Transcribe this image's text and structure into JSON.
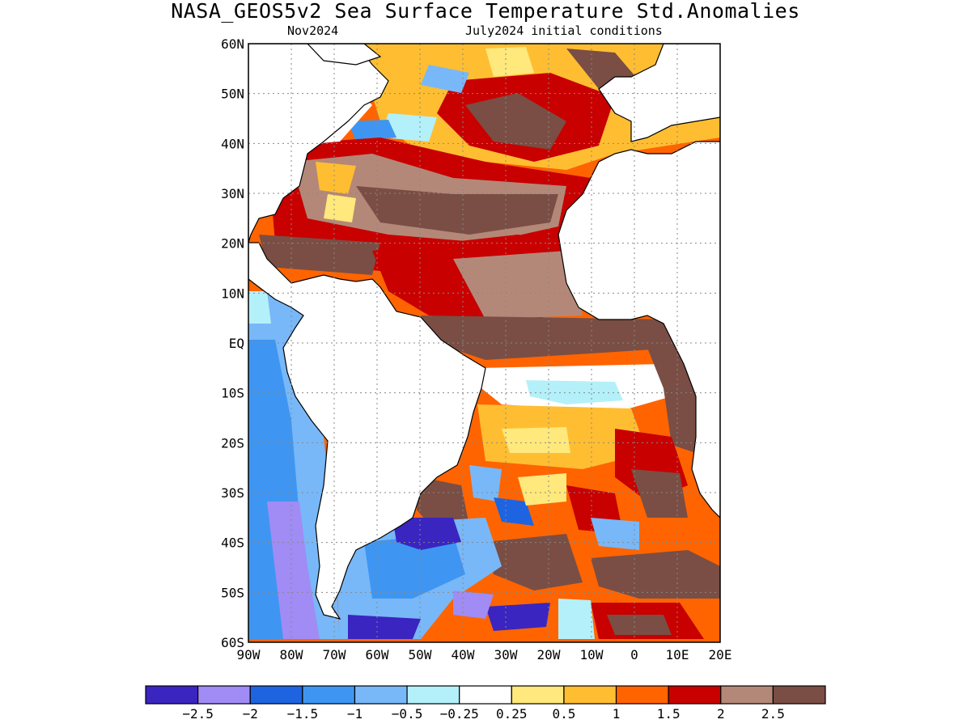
{
  "title": "NASA_GEOS5v2 Sea Surface Temperature Std.Anomalies",
  "subtitle_left": "Nov2024",
  "subtitle_right": "July2024 initial conditions",
  "map": {
    "lon_range": [
      -90,
      20
    ],
    "lat_range": [
      -60,
      60
    ],
    "grid": "dotted",
    "lat_labels": [
      {
        "lat": 60,
        "label": "60N"
      },
      {
        "lat": 50,
        "label": "50N"
      },
      {
        "lat": 40,
        "label": "40N"
      },
      {
        "lat": 30,
        "label": "30N"
      },
      {
        "lat": 20,
        "label": "20N"
      },
      {
        "lat": 10,
        "label": "10N"
      },
      {
        "lat": 0,
        "label": "EQ"
      },
      {
        "lat": -10,
        "label": "10S"
      },
      {
        "lat": -20,
        "label": "20S"
      },
      {
        "lat": -30,
        "label": "30S"
      },
      {
        "lat": -40,
        "label": "40S"
      },
      {
        "lat": -50,
        "label": "50S"
      },
      {
        "lat": -60,
        "label": "60S"
      }
    ],
    "lon_labels": [
      {
        "lon": -90,
        "label": "90W"
      },
      {
        "lon": -80,
        "label": "80W"
      },
      {
        "lon": -70,
        "label": "70W"
      },
      {
        "lon": -60,
        "label": "60W"
      },
      {
        "lon": -50,
        "label": "50W"
      },
      {
        "lon": -40,
        "label": "40W"
      },
      {
        "lon": -30,
        "label": "30W"
      },
      {
        "lon": -20,
        "label": "20W"
      },
      {
        "lon": -10,
        "label": "10W"
      },
      {
        "lon": 0,
        "label": "0"
      },
      {
        "lon": 10,
        "label": "10E"
      },
      {
        "lon": 20,
        "label": "20E"
      }
    ]
  },
  "colorbar": {
    "colors": [
      "#3a25c0",
      "#a08cf4",
      "#1e64e0",
      "#3e96f2",
      "#78b8f8",
      "#b4f0fa",
      "#ffffff",
      "#ffe87c",
      "#ffbe32",
      "#ff6400",
      "#c80000",
      "#b48878",
      "#7a4e44"
    ],
    "labels": [
      "−2.5",
      "−2",
      "−1.5",
      "−1",
      "−0.5",
      "−0.25",
      "0.25",
      "0.5",
      "1",
      "1.5",
      "2",
      "2.5"
    ]
  }
}
